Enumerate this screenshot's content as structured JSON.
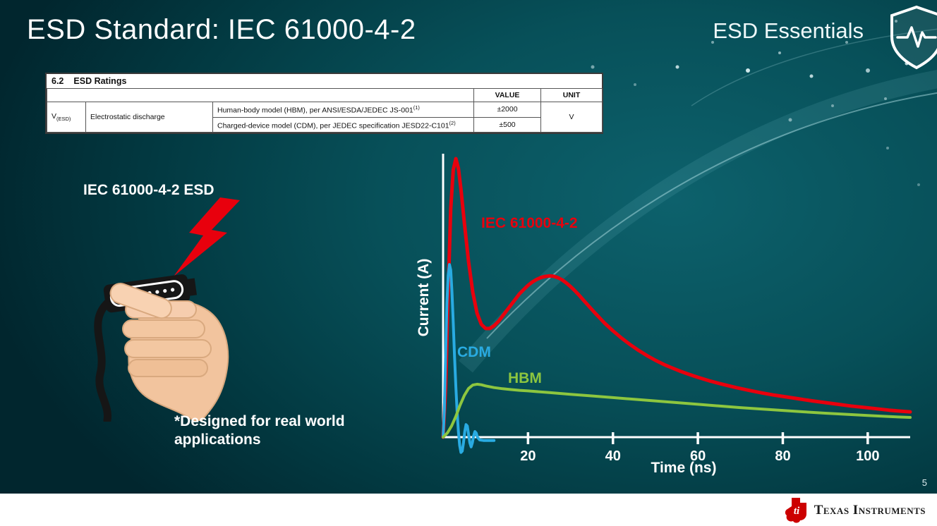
{
  "slide": {
    "title": "ESD Standard: IEC 61000-4-2",
    "brand": "ESD Essentials",
    "page_number": "5"
  },
  "ratings_table": {
    "section": "6.2",
    "section_title": "ESD Ratings",
    "col_value": "VALUE",
    "col_unit": "UNIT",
    "param_symbol": "V",
    "param_symbol_sub": "(ESD)",
    "param_name": "Electrostatic discharge",
    "rows": [
      {
        "desc": "Human-body model (HBM), per ANSI/ESDA/JEDEC JS-001",
        "desc_sup": "(1)",
        "value": "±2000"
      },
      {
        "desc": "Charged-device model (CDM), per JEDEC specification JESD22-C101",
        "desc_sup": "(2)",
        "value": "±500"
      }
    ],
    "unit": "V"
  },
  "left_panel": {
    "caption": "IEC 61000-4-2 ESD",
    "note_line1": "*Designed for real world",
    "note_line2": "applications"
  },
  "footer": {
    "logo_text": "Texas Instruments"
  },
  "chart_data": {
    "type": "line",
    "title": "",
    "xlabel": "Time (ns)",
    "ylabel": "Current (A)",
    "x_ticks": [
      20,
      40,
      60,
      80,
      100
    ],
    "x_range": [
      0,
      110
    ],
    "y_range": [
      -0.06,
      1.05
    ],
    "grid": false,
    "legend_position": "inline-labels",
    "series": [
      {
        "name": "IEC 61000-4-2",
        "color": "#e8000d",
        "width": 5,
        "points": [
          [
            0,
            0
          ],
          [
            0.6,
            0.18
          ],
          [
            1.2,
            0.52
          ],
          [
            1.8,
            0.82
          ],
          [
            2.4,
            0.96
          ],
          [
            3,
            1.0
          ],
          [
            3.6,
            0.965
          ],
          [
            4.2,
            0.89
          ],
          [
            5,
            0.77
          ],
          [
            6,
            0.63
          ],
          [
            7,
            0.52
          ],
          [
            8,
            0.445
          ],
          [
            9,
            0.405
          ],
          [
            10,
            0.39
          ],
          [
            11,
            0.39
          ],
          [
            12,
            0.4
          ],
          [
            13,
            0.415
          ],
          [
            14,
            0.435
          ],
          [
            15,
            0.455
          ],
          [
            16,
            0.475
          ],
          [
            17,
            0.495
          ],
          [
            18,
            0.515
          ],
          [
            19,
            0.53
          ],
          [
            20,
            0.545
          ],
          [
            21,
            0.557
          ],
          [
            22,
            0.566
          ],
          [
            23,
            0.573
          ],
          [
            24,
            0.577
          ],
          [
            25,
            0.579
          ],
          [
            26,
            0.578
          ],
          [
            27,
            0.573
          ],
          [
            28,
            0.565
          ],
          [
            29,
            0.554
          ],
          [
            30,
            0.541
          ],
          [
            31,
            0.526
          ],
          [
            32,
            0.51
          ],
          [
            33,
            0.493
          ],
          [
            34,
            0.476
          ],
          [
            35,
            0.459
          ],
          [
            36,
            0.442
          ],
          [
            37,
            0.426
          ],
          [
            38,
            0.41
          ],
          [
            39,
            0.396
          ],
          [
            40,
            0.382
          ],
          [
            42,
            0.356
          ],
          [
            44,
            0.333
          ],
          [
            46,
            0.312
          ],
          [
            48,
            0.293
          ],
          [
            50,
            0.276
          ],
          [
            52,
            0.261
          ],
          [
            54,
            0.248
          ],
          [
            56,
            0.236
          ],
          [
            58,
            0.225
          ],
          [
            60,
            0.215
          ],
          [
            63,
            0.201
          ],
          [
            66,
            0.189
          ],
          [
            69,
            0.178
          ],
          [
            72,
            0.168
          ],
          [
            75,
            0.159
          ],
          [
            78,
            0.151
          ],
          [
            81,
            0.144
          ],
          [
            84,
            0.137
          ],
          [
            87,
            0.13
          ],
          [
            90,
            0.124
          ],
          [
            93,
            0.118
          ],
          [
            96,
            0.112
          ],
          [
            99,
            0.107
          ],
          [
            102,
            0.102
          ],
          [
            105,
            0.097
          ],
          [
            108,
            0.093
          ],
          [
            110,
            0.091
          ]
        ]
      },
      {
        "name": "CDM",
        "color": "#29abe2",
        "width": 4,
        "points": [
          [
            0,
            0
          ],
          [
            0.3,
            0.1
          ],
          [
            0.6,
            0.3
          ],
          [
            0.9,
            0.48
          ],
          [
            1.2,
            0.58
          ],
          [
            1.5,
            0.62
          ],
          [
            1.8,
            0.6
          ],
          [
            2.1,
            0.52
          ],
          [
            2.4,
            0.41
          ],
          [
            2.7,
            0.29
          ],
          [
            3.0,
            0.18
          ],
          [
            3.3,
            0.09
          ],
          [
            3.6,
            0.02
          ],
          [
            3.9,
            -0.03
          ],
          [
            4.2,
            -0.055
          ],
          [
            4.5,
            -0.05
          ],
          [
            4.8,
            -0.02
          ],
          [
            5.1,
            0.02
          ],
          [
            5.4,
            0.045
          ],
          [
            5.7,
            0.04
          ],
          [
            6.0,
            0.01
          ],
          [
            6.3,
            -0.02
          ],
          [
            6.6,
            -0.035
          ],
          [
            6.9,
            -0.02
          ],
          [
            7.2,
            0.005
          ],
          [
            7.5,
            0.02
          ],
          [
            7.8,
            0.015
          ],
          [
            8.1,
            0
          ],
          [
            8.6,
            -0.01
          ],
          [
            9.5,
            -0.012
          ],
          [
            11,
            -0.012
          ],
          [
            12,
            -0.012
          ]
        ]
      },
      {
        "name": "HBM",
        "color": "#8dc63f",
        "width": 4,
        "points": [
          [
            0,
            0
          ],
          [
            1,
            0.015
          ],
          [
            2,
            0.04
          ],
          [
            3,
            0.075
          ],
          [
            4,
            0.115
          ],
          [
            5,
            0.15
          ],
          [
            6,
            0.175
          ],
          [
            7,
            0.187
          ],
          [
            8,
            0.19
          ],
          [
            9,
            0.188
          ],
          [
            10,
            0.184
          ],
          [
            12,
            0.178
          ],
          [
            14,
            0.174
          ],
          [
            16,
            0.171
          ],
          [
            18,
            0.168
          ],
          [
            20,
            0.166
          ],
          [
            25,
            0.16
          ],
          [
            30,
            0.154
          ],
          [
            35,
            0.148
          ],
          [
            40,
            0.142
          ],
          [
            45,
            0.136
          ],
          [
            50,
            0.13
          ],
          [
            55,
            0.124
          ],
          [
            60,
            0.118
          ],
          [
            65,
            0.112
          ],
          [
            70,
            0.106
          ],
          [
            75,
            0.101
          ],
          [
            80,
            0.096
          ],
          [
            85,
            0.091
          ],
          [
            90,
            0.086
          ],
          [
            95,
            0.082
          ],
          [
            100,
            0.078
          ],
          [
            105,
            0.074
          ],
          [
            110,
            0.071
          ]
        ]
      }
    ]
  }
}
